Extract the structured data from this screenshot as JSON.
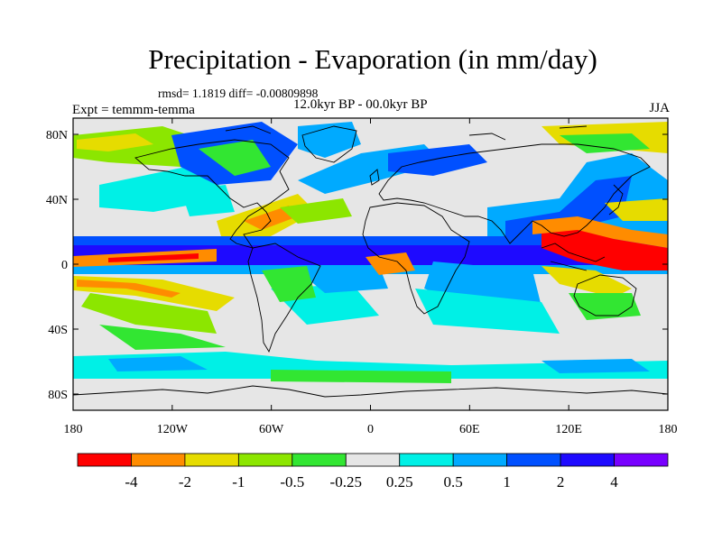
{
  "title": "Precipitation - Evaporation (in mm/day)",
  "stats": "rmsd= 1.1819 diff= -0.00809898",
  "period": "12.0kyr BP - 00.0kyr BP",
  "experiment": "Expt = temmm-temma",
  "season": "JJA",
  "lon_ticks": [
    "180",
    "120W",
    "60W",
    "0",
    "60E",
    "120E",
    "180"
  ],
  "lat_ticks": [
    "80N",
    "40N",
    "0",
    "40S",
    "80S"
  ],
  "colorbar": {
    "colors": [
      "#ff0000",
      "#ff8c00",
      "#e6dc00",
      "#8ce600",
      "#32e632",
      "#e6e6e6",
      "#00f0e6",
      "#00aaff",
      "#0050ff",
      "#1e0aff",
      "#7800ff"
    ],
    "labels": [
      "-4",
      "-2",
      "-1",
      "-0.5",
      "-0.25",
      "0.25",
      "0.5",
      "1",
      "2",
      "4"
    ]
  },
  "colors": {
    "ocean_neutral": "#e6e6e6",
    "coast": "#000000"
  }
}
